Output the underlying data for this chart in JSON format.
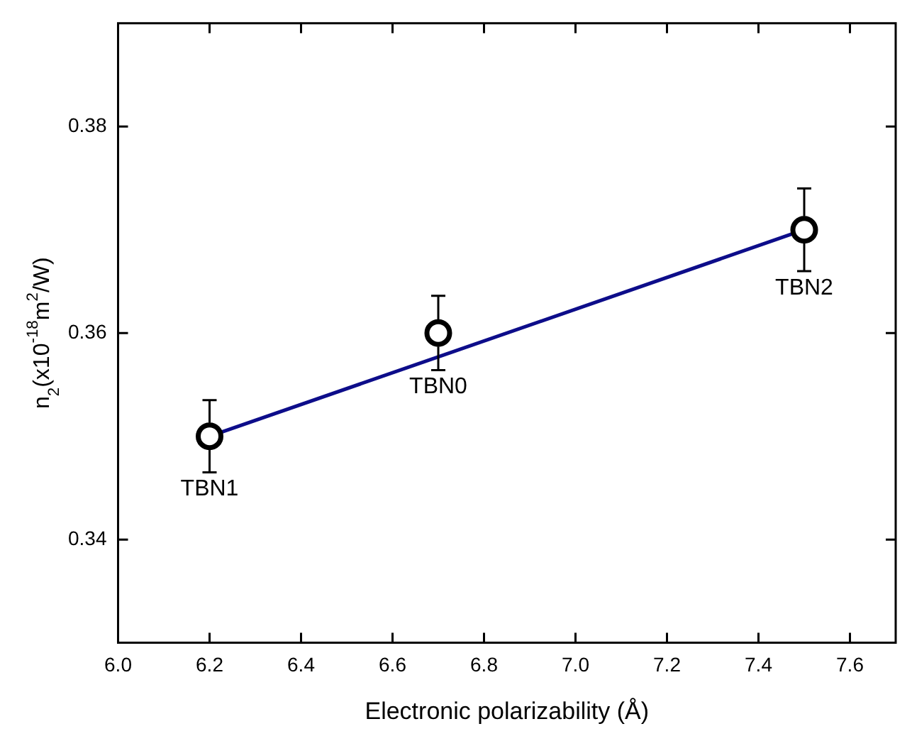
{
  "chart_data": {
    "type": "scatter",
    "xlabel": "Electronic polarizability (Å)",
    "ylabel": "n$_{2}$(x10$^{-18}$m$^{2}$/W)",
    "x": [
      6.2,
      6.7,
      7.5
    ],
    "series": [
      {
        "color": "#000000",
        "values": [
          0.35,
          0.36,
          0.37
        ],
        "errors": [
          0.0035,
          0.0036,
          0.004
        ],
        "marker": "circle"
      },
      {
        "type": "line",
        "color": "#0d0d8a",
        "x": [
          6.2,
          7.5
        ],
        "values": [
          0.35,
          0.37
        ],
        "marker": "none",
        "line_style": "solid"
      }
    ],
    "xlim": [
      6.0,
      7.7
    ],
    "xticks": [
      {
        "value": 6.0,
        "label": "6.0"
      },
      6.2,
      6.4,
      6.6,
      6.8,
      {
        "value": 7.0,
        "label": "7.0"
      },
      7.2,
      7.4,
      7.6
    ],
    "ylim": [
      0.33,
      0.39
    ],
    "yticks": [
      0.34,
      0.36,
      0.38
    ],
    "grid": false,
    "legend": false,
    "annotations": [
      {
        "text": "TBN1",
        "x": 6.2,
        "y": 0.35
      },
      {
        "text": "TBN0",
        "x": 6.7,
        "y": 0.36
      },
      {
        "text": "TBN2",
        "x": 7.5,
        "y": 0.37
      }
    ]
  }
}
